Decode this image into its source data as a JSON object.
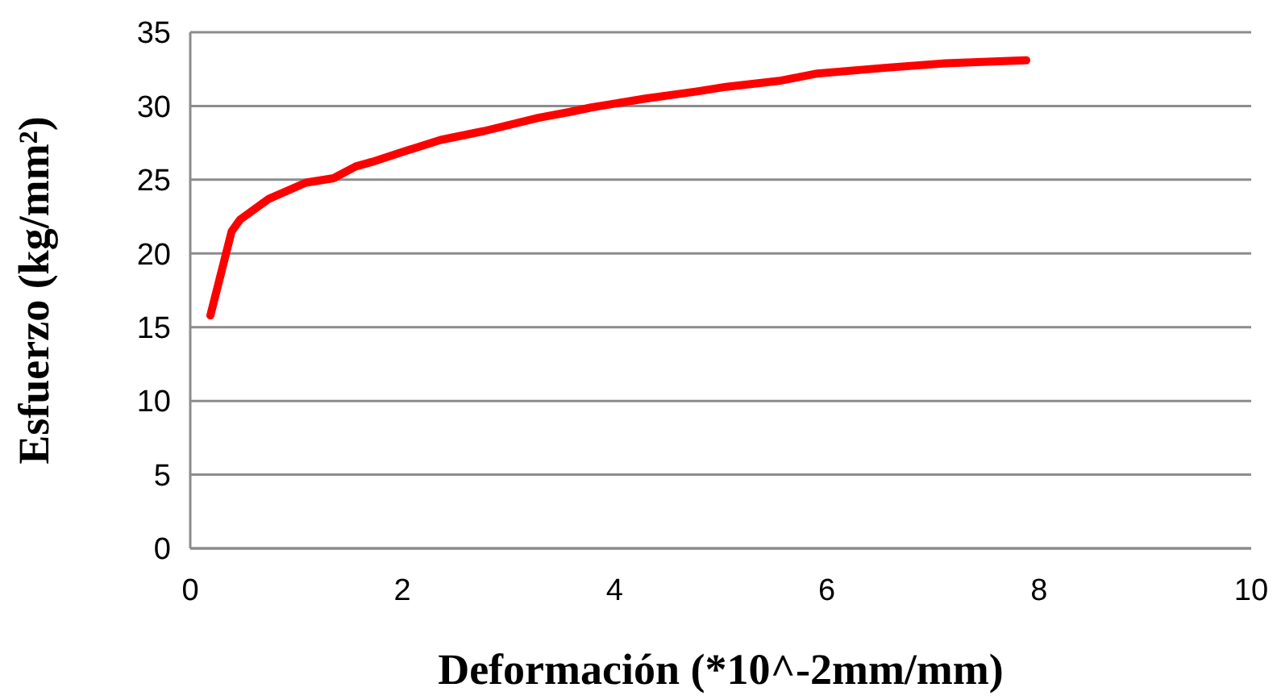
{
  "chart_data": {
    "type": "line",
    "xlabel": "Deformación (*10^-2mm/mm)",
    "ylabel": "Esfuerzo (kg/mm²)",
    "xlim": [
      0,
      10
    ],
    "xticks": [
      0,
      2,
      4,
      6,
      8,
      10
    ],
    "ylim": [
      0,
      35
    ],
    "yticks": [
      0,
      5,
      10,
      15,
      20,
      25,
      30,
      35
    ],
    "grid": "y",
    "marker": "none",
    "line_style": "solid",
    "series": [
      {
        "color": "#ff0000",
        "x": [
          0.19,
          0.39,
          0.47,
          0.74,
          1.09,
          1.35,
          1.56,
          1.71,
          2.01,
          2.36,
          2.77,
          3.28,
          3.58,
          3.78,
          4.29,
          4.79,
          5.05,
          5.55,
          5.91,
          6.57,
          7.12,
          7.88
        ],
        "values": [
          15.8,
          21.5,
          22.3,
          23.7,
          24.8,
          25.1,
          25.9,
          26.2,
          26.9,
          27.7,
          28.3,
          29.2,
          29.6,
          29.9,
          30.5,
          31.0,
          31.3,
          31.7,
          32.2,
          32.6,
          32.9,
          33.1
        ]
      }
    ]
  }
}
